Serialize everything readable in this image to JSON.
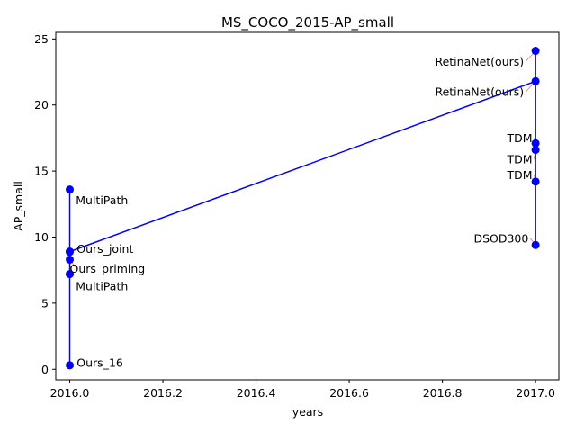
{
  "chart_data": {
    "type": "line",
    "title": "MS_COCO_2015-AP_small",
    "xlabel": "years",
    "ylabel": "AP_small",
    "xlim": [
      2015.97,
      2017.05
    ],
    "ylim": [
      -0.8,
      25.5
    ],
    "xticks": [
      2016.0,
      2016.2,
      2016.4,
      2016.6,
      2016.8,
      2017.0
    ],
    "xtick_labels": [
      "2016.0",
      "2016.2",
      "2016.4",
      "2016.6",
      "2016.8",
      "2017.0"
    ],
    "yticks": [
      0,
      5,
      10,
      15,
      20,
      25
    ],
    "ytick_labels": [
      "0",
      "5",
      "10",
      "15",
      "20",
      "25"
    ],
    "grid": false,
    "line_color": "#0000ff",
    "marker_color": "#0000ff",
    "arrow_color": "#f08080",
    "points": [
      {
        "x": 2016.0,
        "y": 0.3,
        "label": "Ours_16"
      },
      {
        "x": 2016.0,
        "y": 7.2,
        "label": "MultiPath"
      },
      {
        "x": 2016.0,
        "y": 8.3,
        "label": "Ours_priming"
      },
      {
        "x": 2016.0,
        "y": 8.9,
        "label": "Ours_joint"
      },
      {
        "x": 2016.0,
        "y": 13.6,
        "label": "MultiPath"
      },
      {
        "x": 2016.0,
        "y": 8.9,
        "label": ""
      },
      {
        "x": 2017.0,
        "y": 21.8,
        "label": "RetinaNet(ours)"
      },
      {
        "x": 2017.0,
        "y": 24.1,
        "label": "RetinaNet(ours)"
      },
      {
        "x": 2017.0,
        "y": 17.1,
        "label": "TDM"
      },
      {
        "x": 2017.0,
        "y": 16.6,
        "label": "TDM"
      },
      {
        "x": 2017.0,
        "y": 14.2,
        "label": "TDM"
      },
      {
        "x": 2017.0,
        "y": 9.4,
        "label": "DSOD300"
      }
    ],
    "annotations": [
      {
        "text": "Ours_16",
        "x": 2016.0,
        "y": 0.3,
        "text_x": 2016.015,
        "text_y": 0.5,
        "anchor": "start",
        "arrow": false
      },
      {
        "text": "MultiPath",
        "x": 2016.0,
        "y": 7.2,
        "text_x": 2016.013,
        "text_y": 6.3,
        "anchor": "start",
        "arrow": false
      },
      {
        "text": "Ours_priming",
        "x": 2016.0,
        "y": 8.3,
        "text_x": 2016.0,
        "text_y": 7.6,
        "anchor": "start",
        "arrow": true
      },
      {
        "text": "Ours_joint",
        "x": 2016.0,
        "y": 8.9,
        "text_x": 2016.015,
        "text_y": 9.1,
        "anchor": "start",
        "arrow": false
      },
      {
        "text": "MultiPath",
        "x": 2016.0,
        "y": 13.6,
        "text_x": 2016.013,
        "text_y": 12.8,
        "anchor": "start",
        "arrow": false
      },
      {
        "text": "RetinaNet(ours)",
        "x": 2017.0,
        "y": 24.1,
        "text_x": 2016.975,
        "text_y": 23.3,
        "anchor": "end",
        "arrow": true
      },
      {
        "text": "RetinaNet(ours)",
        "x": 2017.0,
        "y": 21.8,
        "text_x": 2016.975,
        "text_y": 21.0,
        "anchor": "end",
        "arrow": true
      },
      {
        "text": "TDM",
        "x": 2017.0,
        "y": 17.1,
        "text_x": 2016.993,
        "text_y": 17.5,
        "anchor": "end",
        "arrow": true
      },
      {
        "text": "TDM",
        "x": 2017.0,
        "y": 16.6,
        "text_x": 2016.993,
        "text_y": 15.9,
        "anchor": "end",
        "arrow": true
      },
      {
        "text": "TDM",
        "x": 2017.0,
        "y": 14.2,
        "text_x": 2016.993,
        "text_y": 14.7,
        "anchor": "end",
        "arrow": true
      },
      {
        "text": "DSOD300",
        "x": 2017.0,
        "y": 9.4,
        "text_x": 2016.985,
        "text_y": 9.9,
        "anchor": "end",
        "arrow": true
      }
    ]
  }
}
